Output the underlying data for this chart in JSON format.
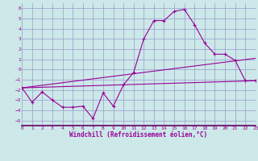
{
  "xlabel": "Windchill (Refroidissement éolien,°C)",
  "xlim": [
    0,
    23
  ],
  "ylim": [
    -5.5,
    6.5
  ],
  "xticks": [
    0,
    1,
    2,
    3,
    4,
    5,
    6,
    7,
    8,
    9,
    10,
    11,
    12,
    13,
    14,
    15,
    16,
    17,
    18,
    19,
    20,
    21,
    22,
    23
  ],
  "yticks": [
    -5,
    -4,
    -3,
    -2,
    -1,
    0,
    1,
    2,
    3,
    4,
    5,
    6
  ],
  "bg_color": "#cce8e8",
  "grid_color": "#9999cc",
  "line_color": "#990099",
  "line1_x": [
    0,
    1,
    2,
    3,
    4,
    5,
    6,
    7,
    8,
    9,
    10,
    11,
    12,
    13,
    14,
    15,
    16,
    17,
    18,
    19,
    20,
    21,
    22,
    23
  ],
  "line1_y": [
    -1.8,
    -3.2,
    -2.2,
    -3.0,
    -3.7,
    -3.7,
    -3.6,
    -4.8,
    -2.3,
    -3.6,
    -1.5,
    -0.3,
    3.0,
    4.8,
    4.8,
    5.7,
    5.9,
    4.4,
    2.6,
    1.5,
    1.5,
    0.9,
    -1.1,
    -1.1
  ],
  "line2_x": [
    0,
    23
  ],
  "line2_y": [
    -1.8,
    1.1
  ],
  "line3_x": [
    0,
    23
  ],
  "line3_y": [
    -1.8,
    -1.1
  ],
  "font_color": "#990099",
  "tick_fontsize": 4.5,
  "xlabel_fontsize": 5.5
}
